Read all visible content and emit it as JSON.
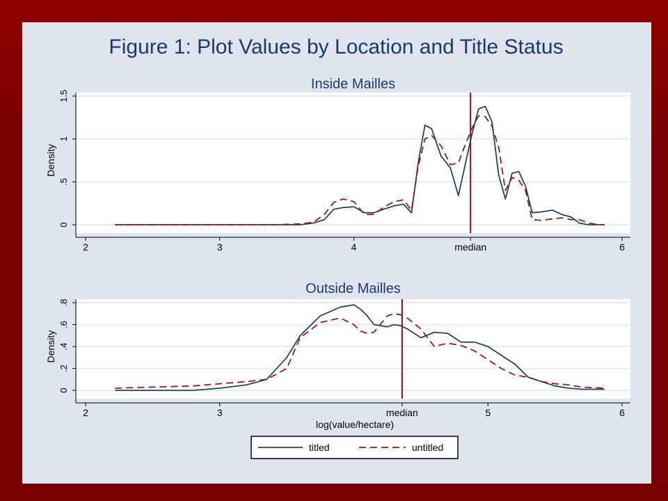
{
  "figure_title": "Figure 1:  Plot Values by Location and Title Status",
  "colors": {
    "titled": "#2a4258",
    "untitled": "#8c1c1c",
    "median_line": "#8c0a1e",
    "plot_bg": "#ffffff",
    "grid": "#dfe4ef",
    "panel_bg": "#dfe4ef",
    "slide_bg": "#7a0000"
  },
  "legend": {
    "items": [
      {
        "label": "titled",
        "style": "solid"
      },
      {
        "label": "untitled",
        "style": "dashed"
      }
    ],
    "placement": "bottom-center"
  },
  "chart_data": [
    {
      "type": "line",
      "title": "Inside Mailles",
      "xlabel": "",
      "ylabel": "Density",
      "xlim": [
        2,
        6
      ],
      "ylim": [
        0,
        1.5
      ],
      "x_ticks": [
        {
          "value": 2,
          "label": "2"
        },
        {
          "value": 3,
          "label": "3"
        },
        {
          "value": 4,
          "label": "4"
        },
        {
          "value": 4.87,
          "label": "median"
        },
        {
          "value": 6,
          "label": "6"
        }
      ],
      "y_ticks": [
        {
          "value": 0,
          "label": "0"
        },
        {
          "value": 0.5,
          "label": ".5"
        },
        {
          "value": 1,
          "label": "1"
        },
        {
          "value": 1.5,
          "label": "1.5"
        }
      ],
      "median_x": 4.87,
      "grid": true,
      "series": [
        {
          "name": "titled",
          "x": [
            2.22,
            2.6,
            3.0,
            3.2,
            3.4,
            3.6,
            3.7,
            3.78,
            3.85,
            3.92,
            4.0,
            4.08,
            4.15,
            4.22,
            4.3,
            4.37,
            4.43,
            4.48,
            4.53,
            4.58,
            4.65,
            4.72,
            4.78,
            4.83,
            4.88,
            4.93,
            4.98,
            5.03,
            5.08,
            5.13,
            5.18,
            5.23,
            5.28,
            5.33,
            5.4,
            5.48,
            5.55,
            5.62,
            5.68,
            5.75,
            5.83,
            5.87
          ],
          "values": [
            0.0,
            0.0,
            0.0,
            0.0,
            0.0,
            0.0,
            0.02,
            0.06,
            0.18,
            0.2,
            0.21,
            0.14,
            0.14,
            0.18,
            0.22,
            0.24,
            0.14,
            0.72,
            1.16,
            1.12,
            0.8,
            0.66,
            0.34,
            0.7,
            1.05,
            1.35,
            1.38,
            1.2,
            0.58,
            0.3,
            0.6,
            0.62,
            0.45,
            0.14,
            0.15,
            0.17,
            0.12,
            0.09,
            0.02,
            0.0,
            0.0,
            0.0
          ]
        },
        {
          "name": "untitled",
          "x": [
            2.22,
            2.6,
            3.0,
            3.2,
            3.4,
            3.6,
            3.7,
            3.78,
            3.85,
            3.92,
            4.0,
            4.08,
            4.15,
            4.22,
            4.3,
            4.37,
            4.43,
            4.48,
            4.53,
            4.58,
            4.65,
            4.72,
            4.78,
            4.83,
            4.88,
            4.93,
            4.98,
            5.03,
            5.08,
            5.13,
            5.18,
            5.23,
            5.28,
            5.33,
            5.4,
            5.48,
            5.55,
            5.62,
            5.68,
            5.75,
            5.83,
            5.87
          ],
          "values": [
            0.0,
            0.0,
            0.0,
            0.0,
            0.0,
            0.01,
            0.03,
            0.12,
            0.26,
            0.3,
            0.27,
            0.12,
            0.12,
            0.2,
            0.27,
            0.29,
            0.17,
            0.68,
            1.0,
            1.04,
            0.92,
            0.7,
            0.72,
            0.93,
            1.12,
            1.27,
            1.26,
            1.15,
            0.9,
            0.4,
            0.55,
            0.52,
            0.4,
            0.06,
            0.05,
            0.07,
            0.08,
            0.06,
            0.06,
            0.02,
            0.0,
            0.0
          ]
        }
      ]
    },
    {
      "type": "line",
      "title": "Outside Mailles",
      "xlabel": "log(value/hectare)",
      "ylabel": "Density",
      "xlim": [
        2,
        6
      ],
      "ylim": [
        0,
        0.8
      ],
      "x_ticks": [
        {
          "value": 2,
          "label": "2"
        },
        {
          "value": 3,
          "label": "3"
        },
        {
          "value": 4.36,
          "label": "median"
        },
        {
          "value": 5,
          "label": "5"
        },
        {
          "value": 6,
          "label": "6"
        }
      ],
      "y_ticks": [
        {
          "value": 0,
          "label": "0"
        },
        {
          "value": 0.2,
          "label": ".2"
        },
        {
          "value": 0.4,
          "label": ".4"
        },
        {
          "value": 0.6,
          "label": ".6"
        },
        {
          "value": 0.8,
          "label": ".8"
        }
      ],
      "median_x": 4.36,
      "grid": true,
      "series": [
        {
          "name": "titled",
          "x": [
            2.22,
            2.5,
            2.8,
            3.0,
            3.2,
            3.35,
            3.5,
            3.6,
            3.75,
            3.9,
            4.0,
            4.05,
            4.1,
            4.15,
            4.25,
            4.3,
            4.35,
            4.4,
            4.5,
            4.6,
            4.7,
            4.8,
            4.9,
            5.0,
            5.1,
            5.2,
            5.3,
            5.4,
            5.5,
            5.6,
            5.7,
            5.87
          ],
          "values": [
            0.0,
            0.0,
            0.0,
            0.02,
            0.05,
            0.1,
            0.3,
            0.5,
            0.68,
            0.76,
            0.78,
            0.74,
            0.68,
            0.6,
            0.58,
            0.6,
            0.59,
            0.56,
            0.48,
            0.53,
            0.52,
            0.44,
            0.44,
            0.4,
            0.32,
            0.24,
            0.12,
            0.08,
            0.04,
            0.02,
            0.01,
            0.01
          ]
        },
        {
          "name": "untitled",
          "x": [
            2.22,
            2.5,
            2.8,
            3.0,
            3.2,
            3.35,
            3.5,
            3.6,
            3.75,
            3.9,
            4.0,
            4.05,
            4.1,
            4.15,
            4.25,
            4.3,
            4.35,
            4.4,
            4.5,
            4.6,
            4.7,
            4.8,
            4.9,
            5.0,
            5.1,
            5.2,
            5.3,
            5.4,
            5.5,
            5.6,
            5.7,
            5.87
          ],
          "values": [
            0.02,
            0.03,
            0.04,
            0.06,
            0.08,
            0.1,
            0.2,
            0.48,
            0.62,
            0.66,
            0.6,
            0.54,
            0.52,
            0.53,
            0.68,
            0.7,
            0.69,
            0.66,
            0.56,
            0.4,
            0.43,
            0.41,
            0.36,
            0.28,
            0.2,
            0.14,
            0.12,
            0.08,
            0.06,
            0.05,
            0.03,
            0.02
          ]
        }
      ]
    }
  ]
}
